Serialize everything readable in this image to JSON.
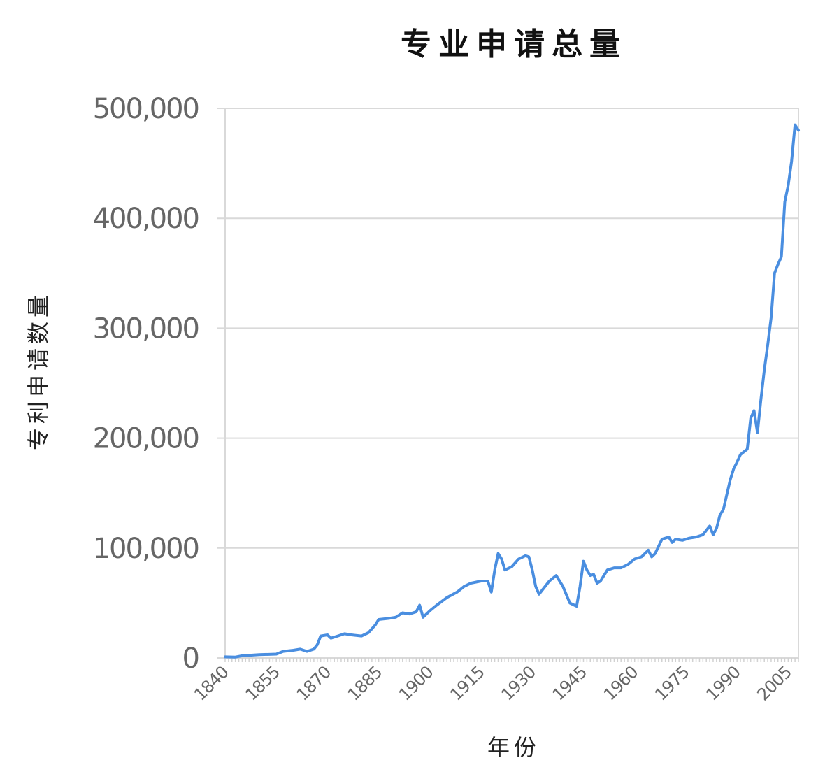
{
  "chart_data": {
    "type": "line",
    "title": "专业申请总量",
    "xlabel": "年份",
    "ylabel": "专利申请数量",
    "xlim": [
      1840,
      2008
    ],
    "ylim": [
      0,
      500000
    ],
    "yticks": [
      0,
      100000,
      200000,
      300000,
      400000,
      500000
    ],
    "ytick_labels": [
      "0",
      "100,000",
      "200,000",
      "300,000",
      "400,000",
      "500,000"
    ],
    "xticks": [
      1840,
      1855,
      1870,
      1885,
      1900,
      1915,
      1930,
      1945,
      1960,
      1975,
      1990,
      2005
    ],
    "xtick_labels": [
      "1840",
      "1855",
      "1870",
      "1885",
      "1900",
      "1915",
      "1930",
      "1945",
      "1960",
      "1975",
      "1990",
      "2005"
    ],
    "grid": true,
    "line_color": "#4a8ee0",
    "series": [
      {
        "x": [
          1840,
          1843,
          1845,
          1850,
          1855,
          1857,
          1860,
          1862,
          1864,
          1866,
          1867,
          1868,
          1870,
          1871,
          1873,
          1875,
          1877,
          1880,
          1882,
          1884,
          1885,
          1888,
          1890,
          1892,
          1894,
          1896,
          1897,
          1898,
          1900,
          1902,
          1905,
          1908,
          1910,
          1912,
          1915,
          1917,
          1918,
          1919,
          1920,
          1921,
          1922,
          1924,
          1926,
          1928,
          1929,
          1930,
          1931,
          1932,
          1933,
          1935,
          1937,
          1939,
          1941,
          1943,
          1944,
          1945,
          1946,
          1947,
          1948,
          1949,
          1950,
          1951,
          1952,
          1954,
          1956,
          1958,
          1960,
          1962,
          1964,
          1965,
          1966,
          1968,
          1970,
          1971,
          1972,
          1974,
          1976,
          1978,
          1980,
          1982,
          1983,
          1984,
          1985,
          1986,
          1988,
          1989,
          1990,
          1991,
          1993,
          1994,
          1995,
          1996,
          1997,
          1998,
          1999,
          2000,
          2001,
          2002,
          2003,
          2004,
          2005,
          2006,
          2007,
          2008
        ],
        "values": [
          1000,
          800,
          2000,
          3000,
          3500,
          6000,
          7000,
          8000,
          6000,
          8000,
          12000,
          20000,
          21000,
          18000,
          20000,
          22000,
          21000,
          20000,
          23000,
          30000,
          35000,
          36000,
          37000,
          41000,
          40000,
          42000,
          48000,
          37000,
          43000,
          48000,
          55000,
          60000,
          65000,
          68000,
          70000,
          70000,
          60000,
          80000,
          95000,
          90000,
          80000,
          83000,
          90000,
          93000,
          92000,
          80000,
          65000,
          58000,
          62000,
          70000,
          75000,
          65000,
          50000,
          47000,
          65000,
          88000,
          80000,
          75000,
          76000,
          68000,
          70000,
          75000,
          80000,
          82000,
          82000,
          85000,
          90000,
          92000,
          98000,
          92000,
          95000,
          108000,
          110000,
          105000,
          108000,
          107000,
          109000,
          110000,
          112000,
          120000,
          112000,
          118000,
          130000,
          135000,
          162000,
          172000,
          178000,
          185000,
          190000,
          218000,
          225000,
          205000,
          235000,
          262000,
          285000,
          310000,
          350000,
          358000,
          365000,
          415000,
          430000,
          452000,
          485000,
          480000
        ]
      }
    ]
  }
}
